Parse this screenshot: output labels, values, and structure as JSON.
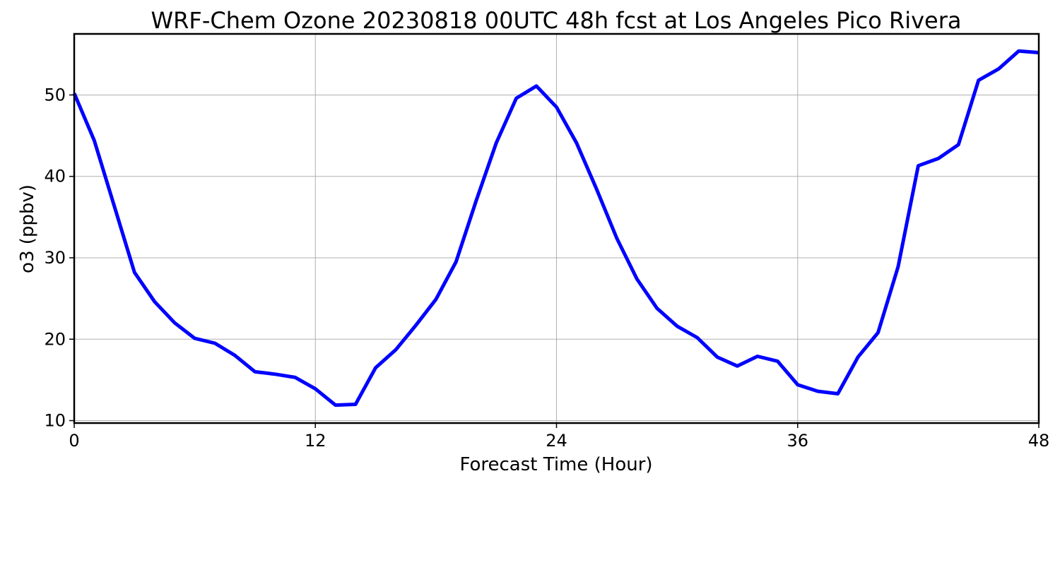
{
  "chart_data": {
    "type": "line",
    "title": "WRF-Chem Ozone  20230818 00UTC 48h fcst at Los Angeles Pico Rivera",
    "xlabel": "Forecast Time (Hour)",
    "ylabel": "o3  (ppbv)",
    "xlim": [
      0,
      48
    ],
    "ylim": [
      9.7,
      57.5
    ],
    "xticks": [
      0,
      12,
      24,
      36,
      48
    ],
    "yticks": [
      10,
      20,
      30,
      40,
      50
    ],
    "grid": true,
    "series": [
      {
        "color": "#0000ff",
        "x": [
          0,
          1,
          2,
          3,
          4,
          5,
          6,
          7,
          8,
          9,
          10,
          11,
          12,
          13,
          14,
          15,
          16,
          17,
          18,
          19,
          20,
          21,
          22,
          23,
          24,
          25,
          26,
          27,
          28,
          29,
          30,
          31,
          32,
          33,
          34,
          35,
          36,
          37,
          38,
          39,
          40,
          41,
          42,
          43,
          44,
          45,
          46,
          47,
          48
        ],
        "values": [
          50.2,
          44.4,
          36.3,
          28.2,
          24.6,
          22.0,
          20.1,
          19.5,
          18.0,
          16.0,
          15.7,
          15.3,
          13.9,
          11.9,
          12.0,
          16.5,
          18.7,
          21.7,
          24.9,
          29.5,
          37.0,
          44.1,
          49.6,
          51.1,
          48.5,
          44.1,
          38.4,
          32.4,
          27.4,
          23.8,
          21.6,
          20.2,
          17.8,
          16.7,
          17.9,
          17.3,
          14.4,
          13.6,
          13.3,
          17.8,
          20.8,
          28.9,
          41.3,
          42.2,
          43.9,
          51.8,
          53.2,
          55.4,
          55.2
        ]
      }
    ]
  }
}
